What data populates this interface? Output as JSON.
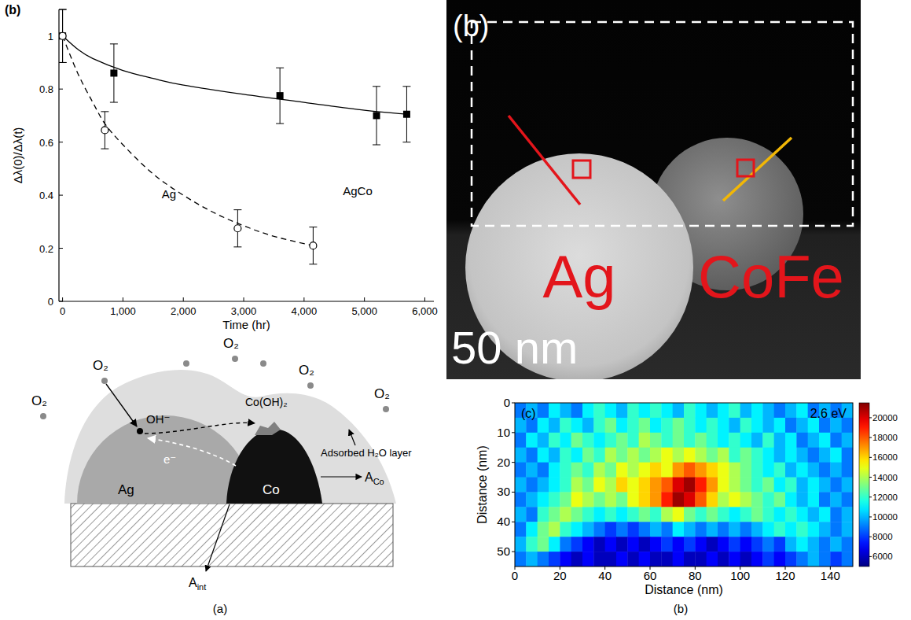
{
  "chart_data": [
    {
      "type": "scatter",
      "panel_label": "(b)",
      "x_label": "Time (hr)",
      "y_label": "Δλ(0)/Δλ(t)",
      "xlim": [
        -60,
        6150
      ],
      "ylim": [
        0,
        1.1
      ],
      "xticks": [
        0,
        {
          "value": 1000,
          "label": "1,000"
        },
        {
          "value": 2000,
          "label": "2,000"
        },
        {
          "value": 3000,
          "label": "3,000"
        },
        {
          "value": 4000,
          "label": "4,000"
        },
        {
          "value": 5000,
          "label": "5,000"
        },
        {
          "value": 6000,
          "label": "6,000"
        }
      ],
      "yticks": [
        0,
        0.2,
        0.4,
        0.6,
        0.8,
        1
      ],
      "series": [
        {
          "name": "AgCo",
          "color": "#000000",
          "marker": "square",
          "line_style": "solid",
          "x": [
            0,
            850,
            3600,
            5200,
            5700
          ],
          "values": [
            1,
            0.86,
            0.775,
            0.7,
            0.705
          ],
          "errors": [
            0.1,
            0.11,
            0.105,
            0.11,
            0.105
          ],
          "fit": {
            "x": [
              0,
              250,
              500,
              1000,
              1500,
              2000,
              3000,
              4000,
              5000,
              5700
            ],
            "values": [
              1,
              0.95,
              0.915,
              0.87,
              0.84,
              0.815,
              0.78,
              0.75,
              0.72,
              0.705
            ]
          }
        },
        {
          "name": "Ag",
          "color": "#000000",
          "marker": "circle-open",
          "line_style": "dashed",
          "x": [
            0,
            700,
            2900,
            4150
          ],
          "values": [
            1,
            0.645,
            0.275,
            0.21
          ],
          "errors": [
            0.1,
            0.07,
            0.07,
            0.07
          ],
          "fit": {
            "x": [
              0,
              250,
              500,
              700,
              1000,
              1500,
              2000,
              2500,
              3000,
              3500,
              4150
            ],
            "values": [
              1,
              0.86,
              0.75,
              0.67,
              0.59,
              0.48,
              0.4,
              0.335,
              0.285,
              0.245,
              0.21
            ]
          }
        }
      ]
    },
    {
      "type": "heatmap",
      "panel_label": "(c)",
      "annotation": "2.6 eV",
      "x_label": "Distance (nm)",
      "y_label": "Distance (nm)",
      "xlim": [
        0,
        150
      ],
      "ylim": [
        0,
        55
      ],
      "xticks": [
        0,
        20,
        40,
        60,
        80,
        100,
        120,
        140
      ],
      "yticks": [
        0,
        10,
        20,
        30,
        40,
        50
      ],
      "cells": [
        [
          9000,
          10000,
          9000,
          11000,
          10000,
          9000,
          11000,
          12000,
          11000,
          10000,
          12000,
          11000,
          12000,
          11000,
          10000,
          12000,
          11000,
          10000,
          11000,
          12000,
          10000,
          11000,
          10000,
          9000,
          10000,
          11000,
          9000,
          10000,
          9000,
          10000
        ],
        [
          10000,
          9000,
          11000,
          10000,
          12000,
          11000,
          10000,
          12000,
          13000,
          11000,
          12000,
          13000,
          11000,
          12000,
          13000,
          12000,
          11000,
          12000,
          11000,
          10000,
          12000,
          11000,
          10000,
          11000,
          9000,
          10000,
          11000,
          9000,
          10000,
          9000
        ],
        [
          9000,
          11000,
          10000,
          12000,
          11000,
          13000,
          12000,
          11000,
          12000,
          13000,
          12000,
          14000,
          13000,
          12000,
          13000,
          12000,
          13000,
          12000,
          11000,
          12000,
          11000,
          10000,
          12000,
          10000,
          11000,
          9000,
          10000,
          11000,
          9000,
          10000
        ],
        [
          10000,
          9000,
          11000,
          10000,
          12000,
          11000,
          13000,
          12000,
          14000,
          13000,
          14000,
          13000,
          14000,
          15000,
          14000,
          15000,
          14000,
          13000,
          14000,
          12000,
          13000,
          12000,
          11000,
          10000,
          11000,
          10000,
          9000,
          10000,
          11000,
          9000
        ],
        [
          9000,
          10000,
          9000,
          11000,
          12000,
          13000,
          12000,
          14000,
          13000,
          15000,
          14000,
          15000,
          16000,
          15000,
          17000,
          18000,
          17000,
          16000,
          15000,
          14000,
          13000,
          12000,
          11000,
          12000,
          10000,
          11000,
          10000,
          9000,
          10000,
          9000
        ],
        [
          10000,
          9000,
          10000,
          11000,
          12000,
          14000,
          13000,
          15000,
          14000,
          16000,
          15000,
          16000,
          17000,
          18000,
          20000,
          21000,
          19000,
          17000,
          15000,
          14000,
          13000,
          12000,
          13000,
          11000,
          12000,
          10000,
          11000,
          10000,
          9000,
          10000
        ],
        [
          9000,
          10000,
          11000,
          12000,
          13000,
          15000,
          14000,
          13000,
          14000,
          13000,
          15000,
          16000,
          17000,
          19000,
          21000,
          20000,
          18000,
          16000,
          14000,
          15000,
          14000,
          13000,
          12000,
          13000,
          11000,
          10000,
          11000,
          9000,
          10000,
          9000
        ],
        [
          10000,
          9000,
          12000,
          13000,
          14000,
          13000,
          12000,
          11000,
          12000,
          11000,
          12000,
          13000,
          12000,
          14000,
          15000,
          13000,
          12000,
          13000,
          12000,
          11000,
          12000,
          13000,
          12000,
          11000,
          12000,
          11000,
          10000,
          11000,
          9000,
          10000
        ],
        [
          9000,
          11000,
          13000,
          14000,
          12000,
          11000,
          10000,
          9000,
          8000,
          9000,
          8000,
          9000,
          10000,
          9000,
          11000,
          10000,
          9000,
          10000,
          9000,
          10000,
          9000,
          10000,
          11000,
          12000,
          11000,
          12000,
          11000,
          10000,
          9000,
          10000
        ],
        [
          10000,
          12000,
          13000,
          11000,
          9000,
          8000,
          7000,
          6000,
          7000,
          6000,
          7000,
          6000,
          7000,
          8000,
          7000,
          8000,
          7000,
          6000,
          7000,
          8000,
          7000,
          8000,
          9000,
          8000,
          10000,
          11000,
          10000,
          9000,
          10000,
          9000
        ],
        [
          9000,
          10000,
          9000,
          8000,
          7000,
          6000,
          7000,
          6000,
          6000,
          7000,
          6000,
          7000,
          6000,
          6000,
          7000,
          6000,
          6000,
          7000,
          6000,
          7000,
          6000,
          7000,
          8000,
          7000,
          8000,
          9000,
          10000,
          9000,
          8000,
          9000
        ]
      ],
      "colorbar": {
        "range": [
          5000,
          21500
        ],
        "ticks": [
          6000,
          8000,
          10000,
          12000,
          14000,
          16000,
          18000,
          20000
        ]
      }
    }
  ],
  "diagram": {
    "gases": [
      "O₂",
      "O₂",
      "O₂",
      "O₂",
      "O₂"
    ],
    "hydroxide": "OH⁻",
    "electron": "e⁻",
    "product": "Co(OH)₂",
    "water_layer": "Adsorbed H₂O layer",
    "particles": [
      "Ag",
      "Co"
    ],
    "areas": [
      {
        "text": "A",
        "subscript": "Co"
      },
      {
        "text": "A",
        "subscript": "int"
      }
    ]
  },
  "image": {
    "panel_label": "(b)",
    "particles": [
      "Ag",
      "CoFe"
    ],
    "scale_bar": "50 nm"
  },
  "captions": [
    "(a)",
    "(b)"
  ]
}
